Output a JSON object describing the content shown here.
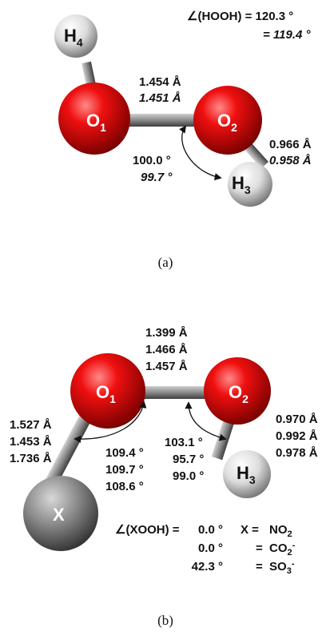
{
  "panel_a": {
    "atoms": {
      "h4": {
        "base": "H",
        "sub": "4"
      },
      "o1": {
        "base": "O",
        "sub": "1"
      },
      "o2": {
        "base": "O",
        "sub": "2"
      },
      "h3": {
        "base": "H",
        "sub": "3"
      }
    },
    "dihedral_line1": "∠(HOOH) = 120.3 °",
    "dihedral_line2": "= 119.4 °",
    "oo_bond": [
      "1.454 Å",
      "1.451 Å"
    ],
    "oh_bond": [
      "0.966 Å",
      "0.958 Å"
    ],
    "angle": [
      "100.0 °",
      "99.7 °"
    ],
    "caption": "(a)"
  },
  "panel_b": {
    "atoms": {
      "o1": {
        "base": "O",
        "sub": "1"
      },
      "o2": {
        "base": "O",
        "sub": "2"
      },
      "h3": {
        "base": "H",
        "sub": "3"
      },
      "x": {
        "base": "X"
      }
    },
    "oo_bond": [
      "1.399 Å",
      "1.466 Å",
      "1.457 Å"
    ],
    "xo_bond": [
      "1.527 Å",
      "1.453 Å",
      "1.736 Å"
    ],
    "oh_bond": [
      "0.970 Å",
      "0.992 Å",
      "0.978 Å"
    ],
    "xoo_angle": [
      "109.4 °",
      "109.7 °",
      "108.6 °"
    ],
    "ooh_angle": [
      "103.1 °",
      "95.7 °",
      "99.0 °"
    ],
    "dihedral_label": "∠(XOOH) =",
    "dihedral_values": [
      "0.0 °",
      "0.0 °",
      "42.3 °"
    ],
    "x_prefix": "X =",
    "eq_prefix": "=",
    "substituents": [
      {
        "base": "NO",
        "sub": "2",
        "sup": ""
      },
      {
        "base": "CO",
        "sub": "2",
        "sup": "-"
      },
      {
        "base": "SO",
        "sub": "3",
        "sup": "-"
      }
    ],
    "caption": "(b)"
  },
  "colors": {
    "oxygen": "#e00000",
    "hydrogen": "#d8d8d8",
    "x_atom": "#8a8a8a",
    "bond": "#8c8c8c"
  }
}
